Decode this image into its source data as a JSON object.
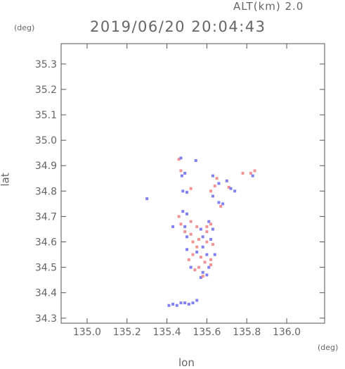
{
  "header": {
    "altitude_label": "ALT(km) 2.0",
    "datetime": "2019/06/20 20:04:43"
  },
  "chart_data": {
    "type": "scatter",
    "title": "",
    "xlabel": "lon",
    "ylabel": "lat",
    "x_unit": "(deg)",
    "y_unit": "(deg)",
    "xlim": [
      134.87,
      136.19
    ],
    "ylim": [
      34.28,
      35.38
    ],
    "x_ticks": [
      "135.0",
      "135.2",
      "135.4",
      "135.6",
      "135.8",
      "136.0"
    ],
    "y_ticks": [
      "34.3",
      "34.4",
      "34.5",
      "34.6",
      "34.7",
      "34.8",
      "34.9",
      "35.0",
      "35.1",
      "35.2",
      "35.3"
    ],
    "grid": false,
    "colors": {
      "positive": "#f08080",
      "negative": "#6a6af0"
    },
    "series": [
      {
        "values": [
          [
            135.46,
            34.925,
            1
          ],
          [
            135.47,
            34.93,
            -1
          ],
          [
            135.545,
            34.92,
            -1
          ],
          [
            135.47,
            34.88,
            1
          ],
          [
            135.49,
            34.87,
            -1
          ],
          [
            135.475,
            34.86,
            -1
          ],
          [
            135.48,
            34.8,
            -1
          ],
          [
            135.5,
            34.795,
            -1
          ],
          [
            135.52,
            34.81,
            1
          ],
          [
            135.63,
            34.86,
            -1
          ],
          [
            135.65,
            34.85,
            1
          ],
          [
            135.66,
            34.83,
            -1
          ],
          [
            135.62,
            34.8,
            1
          ],
          [
            135.63,
            34.78,
            -1
          ],
          [
            135.64,
            34.82,
            1
          ],
          [
            135.7,
            34.84,
            -1
          ],
          [
            135.71,
            34.815,
            1
          ],
          [
            135.72,
            34.81,
            -1
          ],
          [
            135.78,
            34.87,
            1
          ],
          [
            135.82,
            34.87,
            1
          ],
          [
            135.83,
            34.86,
            -1
          ],
          [
            135.84,
            34.88,
            1
          ],
          [
            135.74,
            34.8,
            -1
          ],
          [
            135.68,
            34.75,
            -1
          ],
          [
            135.67,
            34.74,
            1
          ],
          [
            135.66,
            34.755,
            -1
          ],
          [
            135.3,
            34.77,
            -1
          ],
          [
            135.43,
            34.66,
            -1
          ],
          [
            135.46,
            34.7,
            1
          ],
          [
            135.48,
            34.72,
            -1
          ],
          [
            135.5,
            34.71,
            -1
          ],
          [
            135.47,
            34.67,
            1
          ],
          [
            135.49,
            34.66,
            -1
          ],
          [
            135.52,
            34.68,
            1
          ],
          [
            135.55,
            34.66,
            1
          ],
          [
            135.57,
            34.65,
            -1
          ],
          [
            135.6,
            34.66,
            1
          ],
          [
            135.61,
            34.68,
            -1
          ],
          [
            135.62,
            34.67,
            1
          ],
          [
            135.63,
            34.65,
            -1
          ],
          [
            135.49,
            34.64,
            1
          ],
          [
            135.5,
            34.62,
            -1
          ],
          [
            135.53,
            34.6,
            1
          ],
          [
            135.56,
            34.61,
            1
          ],
          [
            135.58,
            34.58,
            -1
          ],
          [
            135.6,
            34.6,
            1
          ],
          [
            135.62,
            34.61,
            -1
          ],
          [
            135.63,
            34.59,
            1
          ],
          [
            135.5,
            34.57,
            -1
          ],
          [
            135.53,
            34.55,
            1
          ],
          [
            135.55,
            34.56,
            -1
          ],
          [
            135.57,
            34.54,
            1
          ],
          [
            135.6,
            34.55,
            -1
          ],
          [
            135.62,
            34.53,
            1
          ],
          [
            135.64,
            34.55,
            -1
          ],
          [
            135.52,
            34.5,
            -1
          ],
          [
            135.54,
            34.49,
            1
          ],
          [
            135.56,
            34.5,
            1
          ],
          [
            135.58,
            34.48,
            -1
          ],
          [
            135.61,
            34.5,
            -1
          ],
          [
            135.62,
            34.51,
            1
          ],
          [
            135.57,
            34.46,
            -1
          ],
          [
            135.58,
            34.465,
            1
          ],
          [
            135.6,
            34.47,
            -1
          ],
          [
            135.41,
            34.35,
            -1
          ],
          [
            135.43,
            34.355,
            -1
          ],
          [
            135.45,
            34.35,
            -1
          ],
          [
            135.47,
            34.36,
            -1
          ],
          [
            135.49,
            34.36,
            -1
          ],
          [
            135.51,
            34.355,
            -1
          ],
          [
            135.53,
            34.36,
            -1
          ],
          [
            135.55,
            34.37,
            -1
          ],
          [
            135.6,
            34.64,
            1
          ],
          [
            135.58,
            34.62,
            -1
          ],
          [
            135.52,
            34.63,
            1
          ],
          [
            135.55,
            34.58,
            1
          ],
          [
            135.59,
            34.52,
            1
          ],
          [
            135.51,
            34.53,
            1
          ]
        ]
      }
    ]
  }
}
